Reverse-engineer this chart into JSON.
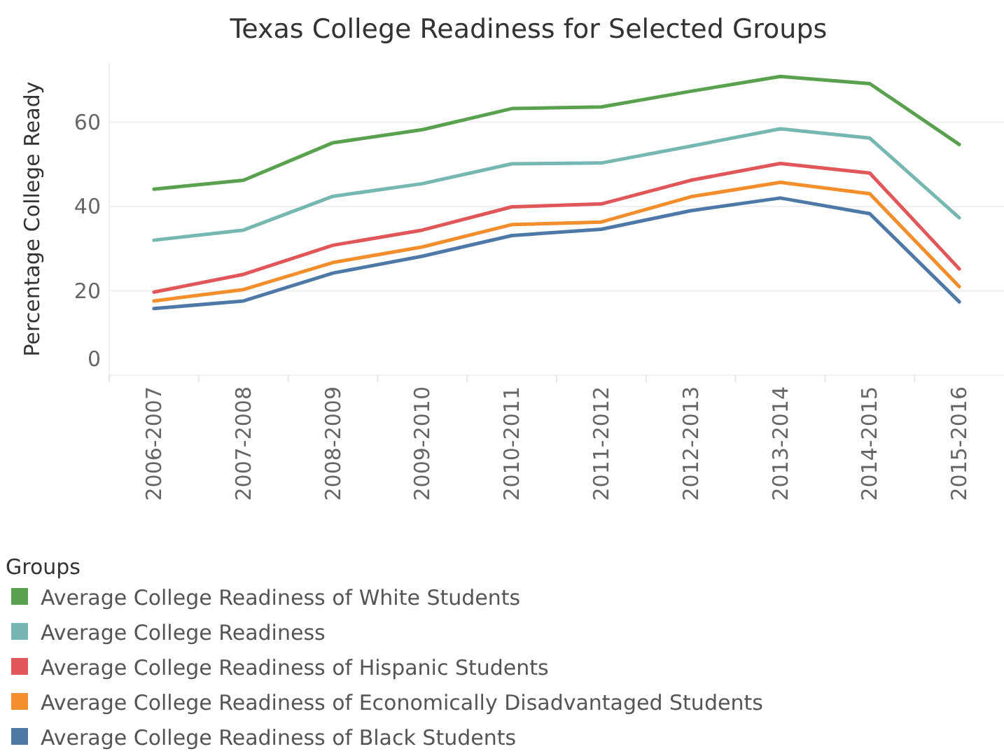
{
  "chart_data": {
    "type": "line",
    "title": "Texas College Readiness for Selected Groups",
    "ylabel": "Percentage College Ready",
    "legend_title": "Groups",
    "categories": [
      "2006-2007",
      "2007-2008",
      "2008-2009",
      "2009-2010",
      "2010-2011",
      "2011-2012",
      "2012-2013",
      "2013-2014",
      "2014-2015",
      "2015-2016"
    ],
    "series": [
      {
        "name": "Average  College Readiness of White Students",
        "color": "#59a14f",
        "values": [
          44.1,
          46.2,
          55.1,
          58.2,
          63.2,
          63.6,
          67.3,
          70.8,
          69.1,
          54.7
        ]
      },
      {
        "name": "Average College Readiness",
        "color": "#76b7b2",
        "values": [
          32,
          34.4,
          42.4,
          45.4,
          50.1,
          50.3,
          54.3,
          58.4,
          56.2,
          37.3
        ]
      },
      {
        "name": "Average  College Readiness of Hispanic Students",
        "color": "#e15759",
        "values": [
          19.7,
          23.9,
          30.8,
          34.4,
          39.9,
          40.6,
          46.2,
          50.2,
          47.9,
          25.2
        ]
      },
      {
        "name": "Average  College Readiness of Economically Disadvantaged Students",
        "color": "#f28e2b",
        "values": [
          17.6,
          20.3,
          26.7,
          30.4,
          35.7,
          36.3,
          42.3,
          45.7,
          43,
          21
        ]
      },
      {
        "name": "Average  College Readiness of Black Students",
        "color": "#4e79a7",
        "values": [
          15.8,
          17.6,
          24.2,
          28.2,
          33.1,
          34.6,
          39,
          42,
          38.3,
          17.4
        ]
      }
    ],
    "ylim": [
      0,
      74
    ],
    "yticks": [
      0,
      20,
      40,
      60
    ],
    "grid": "y",
    "legend": "bottom",
    "marker": "none",
    "line_style": "solid"
  }
}
